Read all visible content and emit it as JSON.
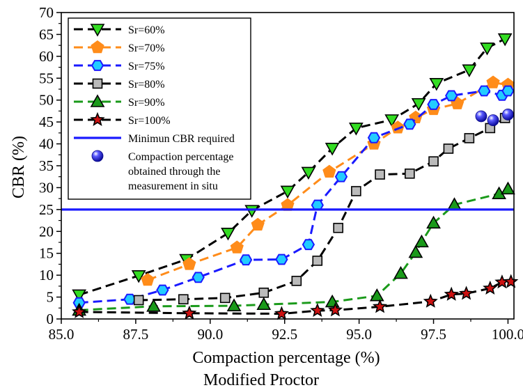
{
  "chart_data": {
    "type": "scatter",
    "title": "",
    "xlabel": "Compaction percentage (%)",
    "xlabel2": "Modified Proctor",
    "ylabel": "CBR (%)",
    "xlim": [
      85.0,
      100.2
    ],
    "ylim": [
      0,
      70
    ],
    "xticks": [
      "85.0",
      "87.5",
      "90.0",
      "92.5",
      "95.0",
      "97.5",
      "100.0"
    ],
    "yticks": [
      "0",
      "5",
      "10",
      "15",
      "20",
      "25",
      "30",
      "35",
      "40",
      "45",
      "50",
      "55",
      "60",
      "65",
      "70"
    ],
    "legend_position": "top-left",
    "grid": false,
    "series": [
      {
        "name": "Sr=60%",
        "marker": "triangle-down",
        "line": "dashed",
        "line_color": "#000000",
        "marker_color": "#33dd22",
        "points": [
          [
            85.6,
            5.5
          ],
          [
            87.6,
            9.9
          ],
          [
            89.2,
            13.6
          ],
          [
            90.6,
            19.6
          ],
          [
            91.4,
            24.8
          ],
          [
            92.6,
            29.2
          ],
          [
            93.3,
            33.5
          ],
          [
            94.1,
            39.0
          ],
          [
            94.9,
            43.6
          ],
          [
            96.1,
            45.5
          ],
          [
            97.0,
            49.2
          ],
          [
            97.6,
            53.8
          ],
          [
            98.7,
            56.9
          ],
          [
            99.3,
            61.9
          ],
          [
            99.9,
            64.0
          ]
        ]
      },
      {
        "name": "Sr=70%",
        "marker": "pentagon",
        "line": "dashed",
        "line_color": "#ff8c1a",
        "marker_color": "#ff8c1a",
        "points": [
          [
            87.9,
            8.9
          ],
          [
            89.3,
            12.5
          ],
          [
            90.9,
            16.3
          ],
          [
            91.6,
            21.5
          ],
          [
            92.6,
            26.0
          ],
          [
            94.0,
            33.6
          ],
          [
            95.5,
            40.0
          ],
          [
            96.3,
            43.7
          ],
          [
            96.9,
            46.0
          ],
          [
            97.5,
            47.9
          ],
          [
            98.3,
            49.2
          ],
          [
            99.5,
            54.0
          ],
          [
            100.0,
            53.5
          ]
        ]
      },
      {
        "name": "Sr=75%",
        "marker": "hexagon",
        "line": "dashed",
        "line_color": "#1a1aff",
        "marker_color": "#22ccff",
        "points": [
          [
            85.6,
            3.7
          ],
          [
            87.3,
            4.5
          ],
          [
            88.4,
            6.6
          ],
          [
            89.6,
            9.5
          ],
          [
            91.2,
            13.5
          ],
          [
            92.4,
            13.6
          ],
          [
            93.3,
            17.0
          ],
          [
            93.6,
            26.0
          ],
          [
            94.4,
            32.5
          ],
          [
            95.5,
            41.4
          ],
          [
            96.7,
            44.5
          ],
          [
            97.5,
            49.0
          ],
          [
            98.1,
            51.0
          ],
          [
            99.2,
            52.1
          ],
          [
            99.8,
            51.1
          ],
          [
            100.0,
            52.1
          ]
        ]
      },
      {
        "name": "Sr=80%",
        "marker": "square",
        "line": "dashed",
        "line_color": "#000000",
        "marker_color": "#bbbbbb",
        "points": [
          [
            87.6,
            4.3
          ],
          [
            89.1,
            4.5
          ],
          [
            90.5,
            4.8
          ],
          [
            91.8,
            6.0
          ],
          [
            92.9,
            8.7
          ],
          [
            93.6,
            13.3
          ],
          [
            94.3,
            20.8
          ],
          [
            94.9,
            29.2
          ],
          [
            95.7,
            33.0
          ],
          [
            96.7,
            33.2
          ],
          [
            97.5,
            36.0
          ],
          [
            98.0,
            38.9
          ],
          [
            98.7,
            41.3
          ],
          [
            99.4,
            43.6
          ],
          [
            99.9,
            45.9
          ]
        ]
      },
      {
        "name": "Sr=90%",
        "marker": "triangle-up",
        "line": "dashed",
        "line_color": "#1a9a1a",
        "marker_color": "#1a9a1a",
        "points": [
          [
            85.6,
            2.0
          ],
          [
            88.1,
            2.9
          ],
          [
            90.8,
            3.0
          ],
          [
            91.8,
            3.3
          ],
          [
            94.1,
            3.9
          ],
          [
            95.6,
            5.3
          ],
          [
            96.4,
            10.4
          ],
          [
            96.9,
            15.2
          ],
          [
            97.1,
            17.6
          ],
          [
            97.5,
            21.9
          ],
          [
            98.2,
            26.1
          ],
          [
            99.7,
            28.6
          ],
          [
            100.0,
            29.7
          ]
        ]
      },
      {
        "name": "Sr=100%",
        "marker": "star",
        "line": "dashed",
        "line_color": "#000000",
        "marker_color": "#cc1111",
        "points": [
          [
            85.6,
            1.6
          ],
          [
            89.3,
            1.3
          ],
          [
            92.4,
            1.2
          ],
          [
            93.6,
            1.9
          ],
          [
            94.2,
            2.0
          ],
          [
            95.7,
            2.8
          ],
          [
            97.4,
            4.0
          ],
          [
            98.1,
            5.6
          ],
          [
            98.6,
            5.8
          ],
          [
            99.4,
            7.0
          ],
          [
            99.8,
            8.4
          ],
          [
            100.1,
            8.5
          ]
        ]
      },
      {
        "name": "Minimun CBR required",
        "kind": "hline",
        "value": 25,
        "line_color": "#1a1aff"
      },
      {
        "name": "Compaction percentage obtained through the measurement in situ",
        "name_lines": [
          "Compaction percentage",
          "obtained through the",
          "measurement in situ"
        ],
        "marker": "sphere",
        "line": "none",
        "marker_color": "#1a1aee",
        "points": [
          [
            99.1,
            46.3
          ],
          [
            99.5,
            45.4
          ],
          [
            100.0,
            46.7
          ]
        ]
      }
    ]
  }
}
